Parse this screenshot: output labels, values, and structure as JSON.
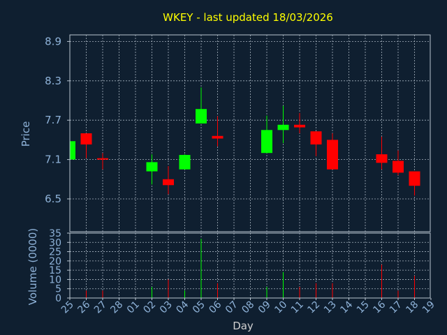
{
  "chart_data": [
    {
      "type": "candlestick",
      "title": "WKEY - last updated 18/03/2026",
      "ylabel": "Price",
      "xlabel": "Day",
      "ylim": [
        6.0,
        9.0
      ],
      "yticks": [
        6.5,
        7.1,
        7.7,
        8.3,
        8.9
      ],
      "grid": true,
      "categories": [
        "25",
        "26",
        "27",
        "28",
        "01",
        "02",
        "03",
        "04",
        "05",
        "06",
        "07",
        "08",
        "09",
        "10",
        "11",
        "12",
        "13",
        "14",
        "15",
        "16",
        "17",
        "18",
        "19"
      ],
      "candles": [
        {
          "day": "25",
          "open": 7.1,
          "high": 7.38,
          "low": 7.1,
          "close": 7.38,
          "dir": "up"
        },
        {
          "day": "26",
          "open": 7.5,
          "high": 7.5,
          "low": 7.12,
          "close": 7.33,
          "dir": "down"
        },
        {
          "day": "27",
          "open": 7.12,
          "high": 7.2,
          "low": 6.95,
          "close": 7.1,
          "dir": "down"
        },
        {
          "day": "02",
          "open": 6.92,
          "high": 7.18,
          "low": 6.72,
          "close": 7.06,
          "dir": "up"
        },
        {
          "day": "03",
          "open": 6.8,
          "high": 7.0,
          "low": 6.57,
          "close": 6.71,
          "dir": "down"
        },
        {
          "day": "04",
          "open": 6.95,
          "high": 7.18,
          "low": 6.95,
          "close": 7.17,
          "dir": "up"
        },
        {
          "day": "05",
          "open": 7.65,
          "high": 8.2,
          "low": 7.65,
          "close": 7.87,
          "dir": "up"
        },
        {
          "day": "06",
          "open": 7.46,
          "high": 7.76,
          "low": 7.3,
          "close": 7.42,
          "dir": "down"
        },
        {
          "day": "09",
          "open": 7.2,
          "high": 7.77,
          "low": 7.2,
          "close": 7.55,
          "dir": "up"
        },
        {
          "day": "10",
          "open": 7.55,
          "high": 7.92,
          "low": 7.35,
          "close": 7.63,
          "dir": "up"
        },
        {
          "day": "11",
          "open": 7.63,
          "high": 7.81,
          "low": 7.5,
          "close": 7.59,
          "dir": "down"
        },
        {
          "day": "12",
          "open": 7.53,
          "high": 7.53,
          "low": 7.15,
          "close": 7.33,
          "dir": "down"
        },
        {
          "day": "13",
          "open": 7.4,
          "high": 7.5,
          "low": 6.95,
          "close": 6.95,
          "dir": "down"
        },
        {
          "day": "16",
          "open": 7.18,
          "high": 7.45,
          "low": 6.95,
          "close": 7.05,
          "dir": "down"
        },
        {
          "day": "17",
          "open": 7.08,
          "high": 7.24,
          "low": 6.86,
          "close": 6.9,
          "dir": "down"
        },
        {
          "day": "18",
          "open": 6.92,
          "high": 6.92,
          "low": 6.55,
          "close": 6.7,
          "dir": "down"
        }
      ]
    },
    {
      "type": "bar",
      "ylabel": "Volume (0000)",
      "xlabel": "Day",
      "ylim": [
        0,
        35
      ],
      "yticks": [
        0,
        5,
        10,
        15,
        20,
        25,
        30,
        35
      ],
      "grid": true,
      "categories": [
        "25",
        "26",
        "27",
        "28",
        "01",
        "02",
        "03",
        "04",
        "05",
        "06",
        "07",
        "08",
        "09",
        "10",
        "11",
        "12",
        "13",
        "14",
        "15",
        "16",
        "17",
        "18",
        "19"
      ],
      "bars": [
        {
          "day": "25",
          "value": 0.5,
          "dir": "up"
        },
        {
          "day": "26",
          "value": 4,
          "dir": "down"
        },
        {
          "day": "27",
          "value": 4,
          "dir": "down"
        },
        {
          "day": "02",
          "value": 6,
          "dir": "up"
        },
        {
          "day": "03",
          "value": 10,
          "dir": "down"
        },
        {
          "day": "04",
          "value": 4,
          "dir": "up"
        },
        {
          "day": "05",
          "value": 32,
          "dir": "up"
        },
        {
          "day": "06",
          "value": 8,
          "dir": "down"
        },
        {
          "day": "09",
          "value": 6,
          "dir": "up"
        },
        {
          "day": "10",
          "value": 14,
          "dir": "up"
        },
        {
          "day": "11",
          "value": 6,
          "dir": "down"
        },
        {
          "day": "12",
          "value": 8,
          "dir": "down"
        },
        {
          "day": "13",
          "value": 8,
          "dir": "down"
        },
        {
          "day": "16",
          "value": 18,
          "dir": "down"
        },
        {
          "day": "17",
          "value": 4,
          "dir": "down"
        },
        {
          "day": "18",
          "value": 12,
          "dir": "down"
        }
      ]
    }
  ],
  "colors": {
    "background": "#0f1f30",
    "up": "#00ff00",
    "down": "#ff0000",
    "title": "#ffff00",
    "axis_text": "#8fb3d9",
    "xlabel_text": "#d0d0d0",
    "frame": "#b8c4d0",
    "grid": "#a8b4c0"
  }
}
